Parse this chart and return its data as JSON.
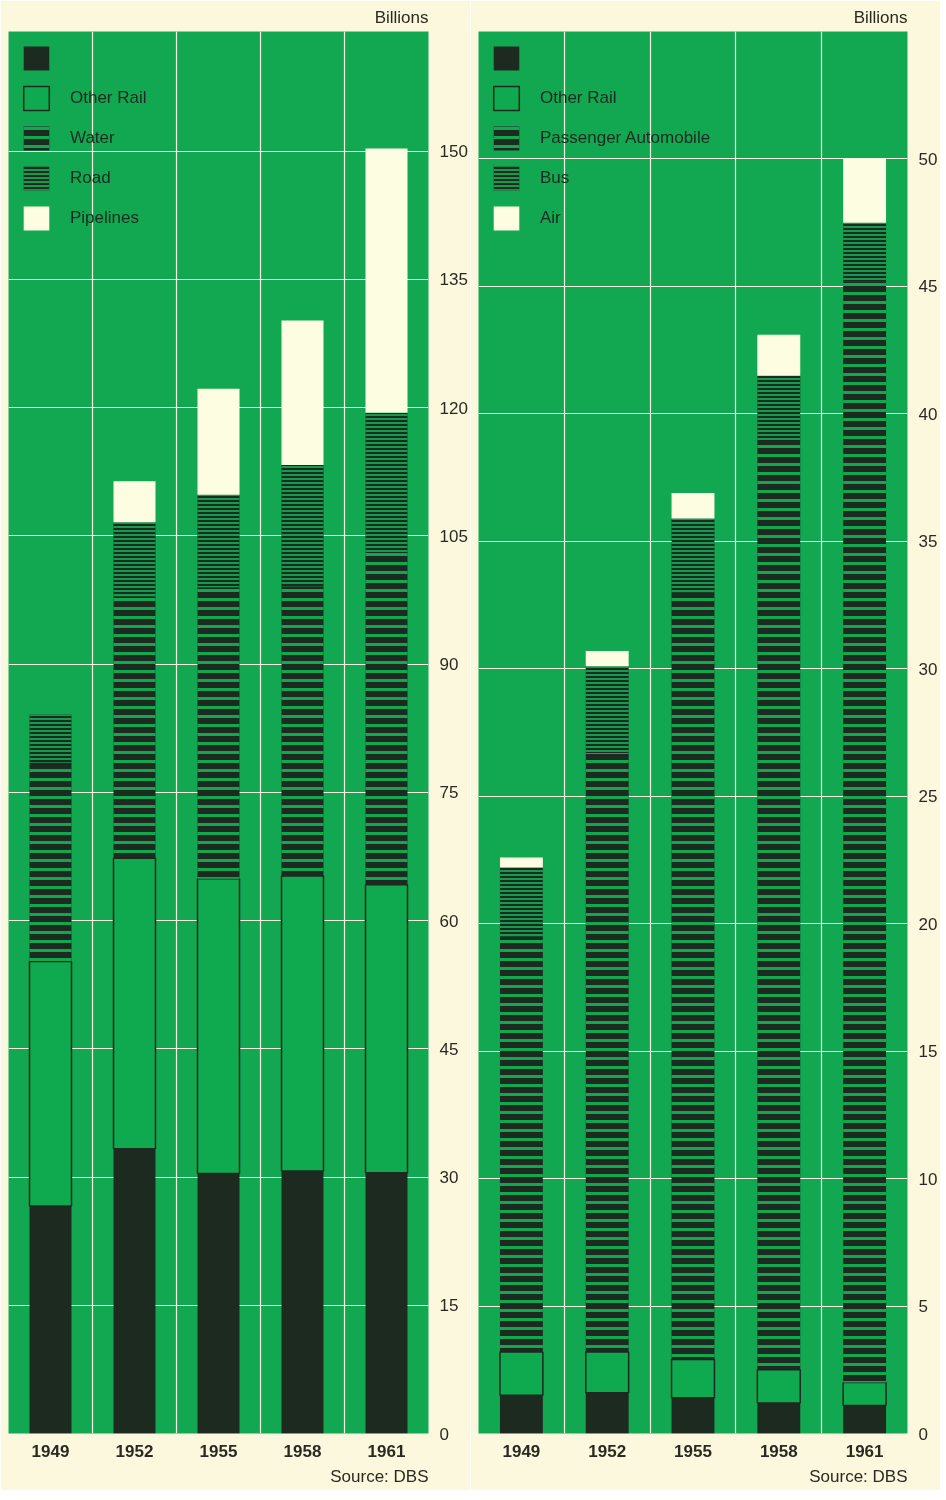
{
  "chart_data": [
    {
      "type": "bar",
      "stacked": true,
      "ylabel": "Billions",
      "categories": [
        "1949",
        "1952",
        "1955",
        "1958",
        "1961"
      ],
      "ylim": [
        0,
        164
      ],
      "yticks": [
        0,
        15,
        30,
        45,
        60,
        75,
        90,
        105,
        120,
        135,
        150
      ],
      "grid": true,
      "legend": "top left",
      "annotations": [
        "Source: DBS"
      ],
      "series": [
        {
          "color": "#1c2a1f",
          "values": [
            26.6,
            33.3,
            30.4,
            30.7,
            30.5
          ]
        },
        {
          "name": "Other Rail",
          "color": "#0fa94f",
          "values": [
            28.6,
            34.0,
            34.5,
            34.5,
            33.7
          ]
        },
        {
          "name": "Water",
          "color": "#1c2a1f",
          "values": [
            23.3,
            30.6,
            34.1,
            33.9,
            38.9
          ]
        },
        {
          "name": "Road",
          "color": "#1c2a1f",
          "values": [
            5.6,
            8.7,
            10.8,
            14.2,
            16.3
          ]
        },
        {
          "name": "Pipelines",
          "color": "#fdfde2",
          "values": [
            0,
            4.8,
            12.4,
            16.9,
            30.9
          ]
        }
      ]
    },
    {
      "type": "bar",
      "stacked": true,
      "ylabel": "Billions",
      "categories": [
        "1949",
        "1952",
        "1955",
        "1958",
        "1961"
      ],
      "ylim": [
        0,
        55
      ],
      "yticks": [
        0,
        5,
        10,
        15,
        20,
        25,
        30,
        35,
        40,
        45,
        50
      ],
      "grid": true,
      "legend": "top left",
      "annotations": [
        "Source: DBS"
      ],
      "series": [
        {
          "color": "#1c2a1f",
          "values": [
            1.5,
            1.6,
            1.4,
            1.2,
            1.1
          ]
        },
        {
          "name": "Other Rail",
          "color": "#0fa94f",
          "values": [
            1.7,
            1.6,
            1.5,
            1.3,
            0.9
          ]
        },
        {
          "name": "Passenger Automobile",
          "color": "#1c2a1f",
          "values": [
            16.3,
            23.5,
            30.1,
            36.4,
            43.2
          ]
        },
        {
          "name": "Bus",
          "color": "#1c2a1f",
          "values": [
            2.7,
            3.4,
            2.9,
            2.6,
            2.3
          ]
        },
        {
          "name": "Air",
          "color": "#fdfde2",
          "values": [
            0.4,
            0.6,
            1.0,
            1.6,
            2.5
          ]
        }
      ]
    }
  ]
}
